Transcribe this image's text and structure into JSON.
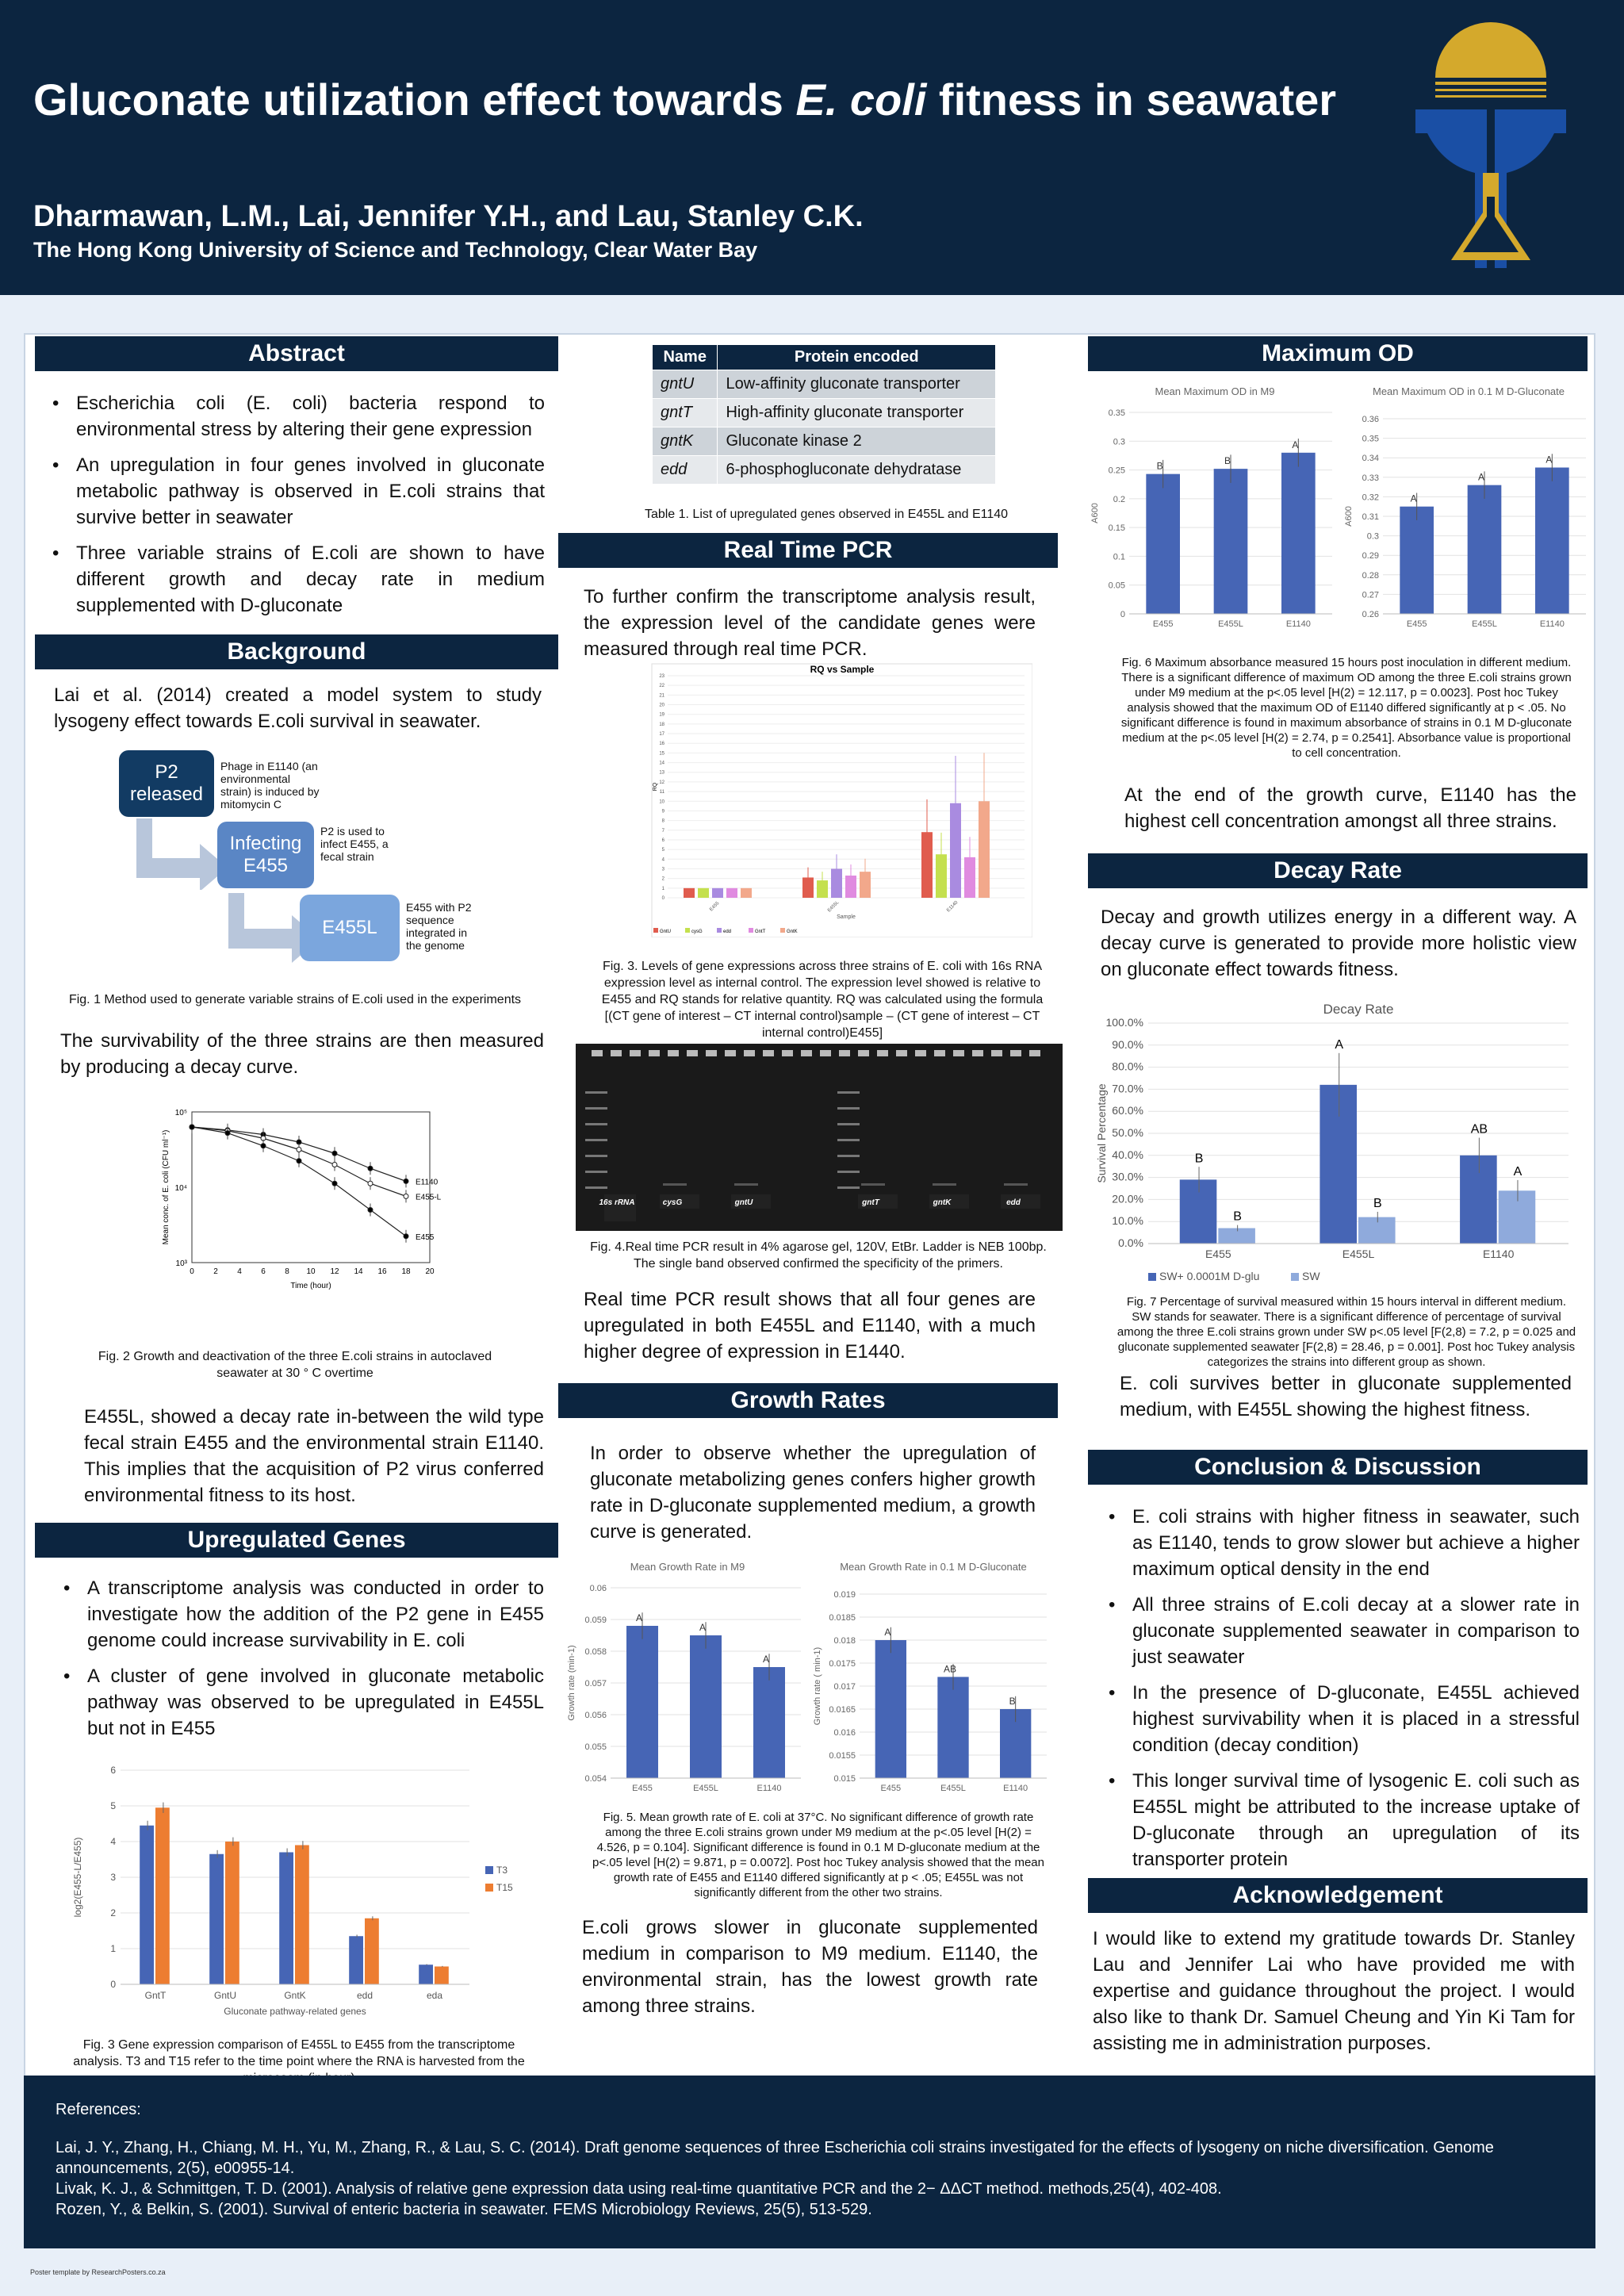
{
  "header": {
    "title_pre": "Gluconate utilization effect towards ",
    "title_italic": "E. coli",
    "title_post": " fitness in seawater",
    "authors": "Dharmawan, L.M., Lai, Jennifer Y.H., and Lau, Stanley C.K.",
    "affiliation": "The Hong Kong University of Science and Technology, Clear Water Bay"
  },
  "abstract": {
    "heading": "Abstract",
    "bullets": [
      "Escherichia coli (E. coli) bacteria respond to environmental stress by altering their gene expression",
      "An upregulation in four genes involved in gluconate metabolic pathway is observed in E.coli strains that survive better in seawater",
      "Three variable strains of E.coli are shown to have different growth and decay rate in medium supplemented with D-gluconate"
    ]
  },
  "background": {
    "heading": "Background",
    "intro": "Lai et al. (2014) created a model system to study lysogeny effect towards E.coli survival in seawater.",
    "flow": [
      {
        "label": "P2 released",
        "note": "Phage in E1140 (an environmental strain) is induced by mitomycin C"
      },
      {
        "label": "Infecting E455",
        "note": "P2 is used to infect E455, a fecal strain"
      },
      {
        "label": "E455L",
        "note": "E455 with P2 sequence integrated in the genome"
      }
    ],
    "fig1_caption": "Fig. 1 Method used to generate variable strains of E.coli used in the experiments",
    "survival_text": "The survivability of the three strains are then measured by producing a decay curve.",
    "fig2_caption": "Fig. 2 Growth and deactivation of the three E.coli strains in autoclaved seawater at 30 ° C overtime",
    "conclusion_text": "E455L, showed a decay rate in-between the wild type fecal strain E455 and the environmental strain E1140. This implies that the acquisition of P2 virus conferred environmental fitness to its host."
  },
  "upregulated": {
    "heading": "Upregulated Genes",
    "bullets": [
      "A transcriptome analysis was conducted in order to investigate how the addition of the P2 gene in E455 genome could increase survivability in E. coli",
      "A cluster of gene involved in gluconate metabolic pathway was observed to be upregulated in E455L but not in E455"
    ],
    "fig3_caption": "Fig. 3 Gene expression comparison of E455L to E455 from the transcriptome analysis. T3 and T15 refer to the time point where the RNA is harvested from the microcosm (in hour)"
  },
  "gene_table": {
    "headers": [
      "Name",
      "Protein encoded"
    ],
    "rows": [
      [
        "gntU",
        "Low-affinity gluconate transporter"
      ],
      [
        "gntT",
        "High-affinity gluconate transporter"
      ],
      [
        "gntK",
        "Gluconate kinase 2"
      ],
      [
        "edd",
        "6-phosphogluconate dehydratase"
      ]
    ],
    "caption": "Table 1. List of upregulated genes observed in E455L and E1140"
  },
  "rtpcr": {
    "heading": "Real Time PCR",
    "intro": "To further confirm the transcriptome analysis result, the expression level of the candidate genes were measured through real time PCR.",
    "fig3_caption": "Fig. 3. Levels of gene expressions across three strains of E. coli with 16s RNA expression level as internal control. The expression level showed is relative to E455 and RQ stands for relative quantity. RQ was calculated using the formula [(CT gene of interest – CT internal control)sample – (CT gene of interest – CT internal control)E455]",
    "gel_labels": [
      "16s rRNA",
      "cysG",
      "gntU",
      "gntT",
      "gntK",
      "edd"
    ],
    "fig4_caption": "Fig. 4.Real time PCR result in 4% agarose gel, 120V, EtBr. Ladder is NEB 100bp. The single band observed confirmed the specificity of the primers.",
    "result": "Real time PCR result shows that all four genes are upregulated in both E455L and E1140, with a much higher degree of expression in E1440."
  },
  "growth": {
    "heading": "Growth Rates",
    "intro": "In order to observe whether the upregulation of gluconate metabolizing genes confers higher growth rate in D-gluconate supplemented medium, a growth curve is generated.",
    "fig5_caption": "Fig. 5. Mean growth rate of E. coli at 37°C. No significant difference of growth rate among the three E.coli strains grown under M9 medium at the p<.05 level [H(2) = 4.526, p = 0.104]. Significant difference is found in 0.1 M D-gluconate medium at the p<.05 level [H(2) = 9.871, p = 0.0072]. Post hoc Tukey analysis showed that the mean growth rate of E455 and E1140 differed significantly at p < .05; E455L was not significantly different from the other two strains.",
    "result": "E.coli grows slower in gluconate supplemented medium in comparison to M9 medium. E1140, the environmental strain, has the lowest growth rate among three strains."
  },
  "maxod": {
    "heading": "Maximum OD",
    "fig6_caption": "Fig. 6 Maximum absorbance measured 15 hours post inoculation in different medium. There is a significant difference of maximum OD among the three E.coli strains grown under M9 medium at the p<.05 level [H(2) = 12.117, p = 0.0023]. Post hoc Tukey analysis showed that the maximum OD of E1140 differed significantly at p < .05. No significant difference is found in maximum absorbance of strains in 0.1 M D-gluconate medium at the p<.05 level [H(2) = 2.74, p = 0.2541]. Absorbance value is proportional to cell concentration.",
    "result": "At the end of the growth curve, E1140 has the highest cell concentration amongst all three strains."
  },
  "decay": {
    "heading": "Decay Rate",
    "intro": "Decay and growth utilizes energy in a different way. A decay curve is generated to provide more holistic view on gluconate effect towards fitness.",
    "fig7_caption": "Fig. 7 Percentage of survival measured within 15 hours interval in different medium. SW stands for seawater. There is a significant difference of percentage of survival among the three E.coli strains grown under SW p<.05 level [F(2,8) = 7.2, p = 0.025 and gluconate supplemented seawater [F(2,8) = 28.46, p = 0.001]. Post hoc Tukey analysis categorizes the strains into different group as shown.",
    "result": "E. coli survives better in gluconate supplemented medium, with E455L showing the highest fitness."
  },
  "conclusion": {
    "heading": "Conclusion & Discussion",
    "bullets": [
      "E. coli strains with higher fitness in seawater, such as E1140, tends to grow slower but achieve a higher maximum optical density in the end",
      "All three strains of E.coli decay at a slower rate in gluconate supplemented seawater in comparison to just seawater",
      "In the presence of D-gluconate, E455L achieved highest survivability when it is placed in a stressful condition (decay condition)",
      "This longer survival time of lysogenic E. coli such as E455L might be attributed to the increase uptake of D-gluconate through an upregulation of its transporter protein"
    ]
  },
  "ack": {
    "heading": "Acknowledgement",
    "text": "I would like to extend my gratitude towards Dr. Stanley Lau and Jennifer Lai who have provided me with expertise and guidance throughout the project. I would also like to thank Dr. Samuel Cheung and Yin Ki Tam for assisting me in administration purposes."
  },
  "references": {
    "heading": "References:",
    "items": [
      "Lai, J. Y., Zhang, H., Chiang, M. H., Yu, M., Zhang, R., & Lau, S. C. (2014). Draft genome sequences of three Escherichia coli strains investigated for the effects of lysogeny on niche diversification. Genome announcements, 2(5), e00955-14.",
      "Livak, K. J., & Schmittgen, T. D. (2001). Analysis of relative gene expression data using real-time quantitative PCR and the 2− ΔΔCT method. methods,25(4), 402-408.",
      "Rozen, Y., & Belkin, S. (2001). Survival of enteric bacteria in seawater. FEMS Microbiology Reviews, 25(5), 513-529."
    ]
  },
  "footer": "Poster template by ResearchPosters.co.za",
  "colors": {
    "navy": "#0c2540",
    "bar_blue": "#4665b5",
    "bar_orange": "#ed7d31",
    "bar_light": "#8faadc"
  },
  "chart_data": [
    {
      "id": "decay_curve",
      "type": "line",
      "xlabel": "Time (hour)",
      "ylabel": "Mean conc. of E. coli (CFU ml⁻¹)",
      "xticks": [
        0,
        2,
        4,
        6,
        8,
        10,
        12,
        14,
        16,
        18,
        20
      ],
      "ytick_labels": [
        "10⁵",
        "10⁴",
        "10³"
      ],
      "log_scale": true,
      "xlim": [
        0,
        20
      ],
      "ylim_log10": [
        3,
        5
      ],
      "x": [
        0,
        3,
        6,
        9,
        12,
        15,
        18
      ],
      "series": [
        {
          "name": "E1140",
          "values": [
            4.8,
            4.76,
            4.7,
            4.6,
            4.45,
            4.25,
            4.08
          ]
        },
        {
          "name": "E455-L",
          "values": [
            4.8,
            4.75,
            4.65,
            4.5,
            4.3,
            4.05,
            3.88
          ]
        },
        {
          "name": "E455",
          "values": [
            4.8,
            4.72,
            4.55,
            4.35,
            4.05,
            3.7,
            3.35
          ]
        }
      ]
    },
    {
      "id": "transcriptome",
      "type": "bar",
      "categories": [
        "GntT",
        "GntU",
        "GntK",
        "edd",
        "eda"
      ],
      "series": [
        {
          "name": "T3",
          "values": [
            4.45,
            3.65,
            3.7,
            1.35,
            0.55
          ]
        },
        {
          "name": "T15",
          "values": [
            4.95,
            4.0,
            3.9,
            1.85,
            0.5
          ]
        }
      ],
      "ylabel": "log2(E455-L/E455)",
      "xlabel": "Gluconate pathway-related genes",
      "ylim": [
        0,
        6
      ],
      "yticks": [
        0,
        1,
        2,
        3,
        4,
        5,
        6
      ]
    },
    {
      "id": "rq",
      "type": "bar",
      "title": "RQ vs Sample",
      "xlabel": "Sample",
      "ylabel": "RQ",
      "categories": [
        "E455",
        "E455L",
        "E1140"
      ],
      "series": [
        {
          "name": "GntU",
          "values": [
            1,
            2.1,
            6.8
          ]
        },
        {
          "name": "cysG",
          "values": [
            1,
            1.8,
            4.5
          ]
        },
        {
          "name": "edd",
          "values": [
            1,
            3.0,
            9.8
          ]
        },
        {
          "name": "GntT",
          "values": [
            1,
            2.3,
            4.2
          ]
        },
        {
          "name": "GntK",
          "values": [
            1,
            2.7,
            10.0
          ]
        }
      ],
      "ylim": [
        0,
        23
      ]
    },
    {
      "id": "growth_m9",
      "type": "bar",
      "title": "Mean Growth Rate in M9",
      "ylabel": "Growth rate (min-1)",
      "categories": [
        "E455",
        "E455L",
        "E1140"
      ],
      "values": [
        0.0588,
        0.0585,
        0.0575
      ],
      "labels": [
        "A",
        "A",
        "A"
      ],
      "ylim": [
        0.054,
        0.06
      ],
      "yticks": [
        "0.054",
        "0.055",
        "0.056",
        "0.057",
        "0.058",
        "0.059",
        "0.06"
      ]
    },
    {
      "id": "growth_glu",
      "type": "bar",
      "title": "Mean Growth Rate in 0.1 M D-Gluconate",
      "ylabel": "Growth rate ( min-1)",
      "categories": [
        "E455",
        "E455L",
        "E1140"
      ],
      "values": [
        0.018,
        0.0172,
        0.0165
      ],
      "labels": [
        "A",
        "AB",
        "B"
      ],
      "ylim": [
        0.015,
        0.019
      ],
      "yticks": [
        "0.015",
        "0.0155",
        "0.016",
        "0.0165",
        "0.017",
        "0.0175",
        "0.018",
        "0.0185",
        "0.019"
      ]
    },
    {
      "id": "od_m9",
      "type": "bar",
      "title": "Mean Maximum OD in M9",
      "ylabel": "A600",
      "categories": [
        "E455",
        "E455L",
        "E1140"
      ],
      "values": [
        0.243,
        0.252,
        0.28
      ],
      "labels": [
        "B",
        "B",
        "A"
      ],
      "ylim": [
        0,
        0.35
      ],
      "yticks": [
        "0",
        "0.05",
        "0.1",
        "0.15",
        "0.2",
        "0.25",
        "0.3",
        "0.35"
      ]
    },
    {
      "id": "od_glu",
      "type": "bar",
      "title": "Mean Maximum OD in 0.1 M D-Gluconate",
      "ylabel": "A600",
      "categories": [
        "E455",
        "E455L",
        "E1140"
      ],
      "values": [
        0.315,
        0.326,
        0.335
      ],
      "labels": [
        "A",
        "A",
        "A"
      ],
      "ylim": [
        0.26,
        0.36
      ],
      "yticks": [
        "0.26",
        "0.27",
        "0.28",
        "0.29",
        "0.3",
        "0.31",
        "0.32",
        "0.33",
        "0.34",
        "0.35",
        "0.36"
      ]
    },
    {
      "id": "decay_rate",
      "type": "bar",
      "title": "Decay Rate",
      "ylabel": "Survival Percentage",
      "categories": [
        "E455",
        "E455L",
        "E1140"
      ],
      "series": [
        {
          "name": "SW+ 0.0001M D-glu",
          "values": [
            0.29,
            0.72,
            0.4
          ],
          "labels": [
            "B",
            "A",
            "AB"
          ]
        },
        {
          "name": "SW",
          "values": [
            0.07,
            0.12,
            0.24
          ],
          "labels": [
            "B",
            "B",
            "A"
          ]
        }
      ],
      "ylim": [
        0,
        1
      ],
      "yticks": [
        "0.0%",
        "10.0%",
        "20.0%",
        "30.0%",
        "40.0%",
        "50.0%",
        "60.0%",
        "70.0%",
        "80.0%",
        "90.0%",
        "100.0%"
      ]
    }
  ]
}
